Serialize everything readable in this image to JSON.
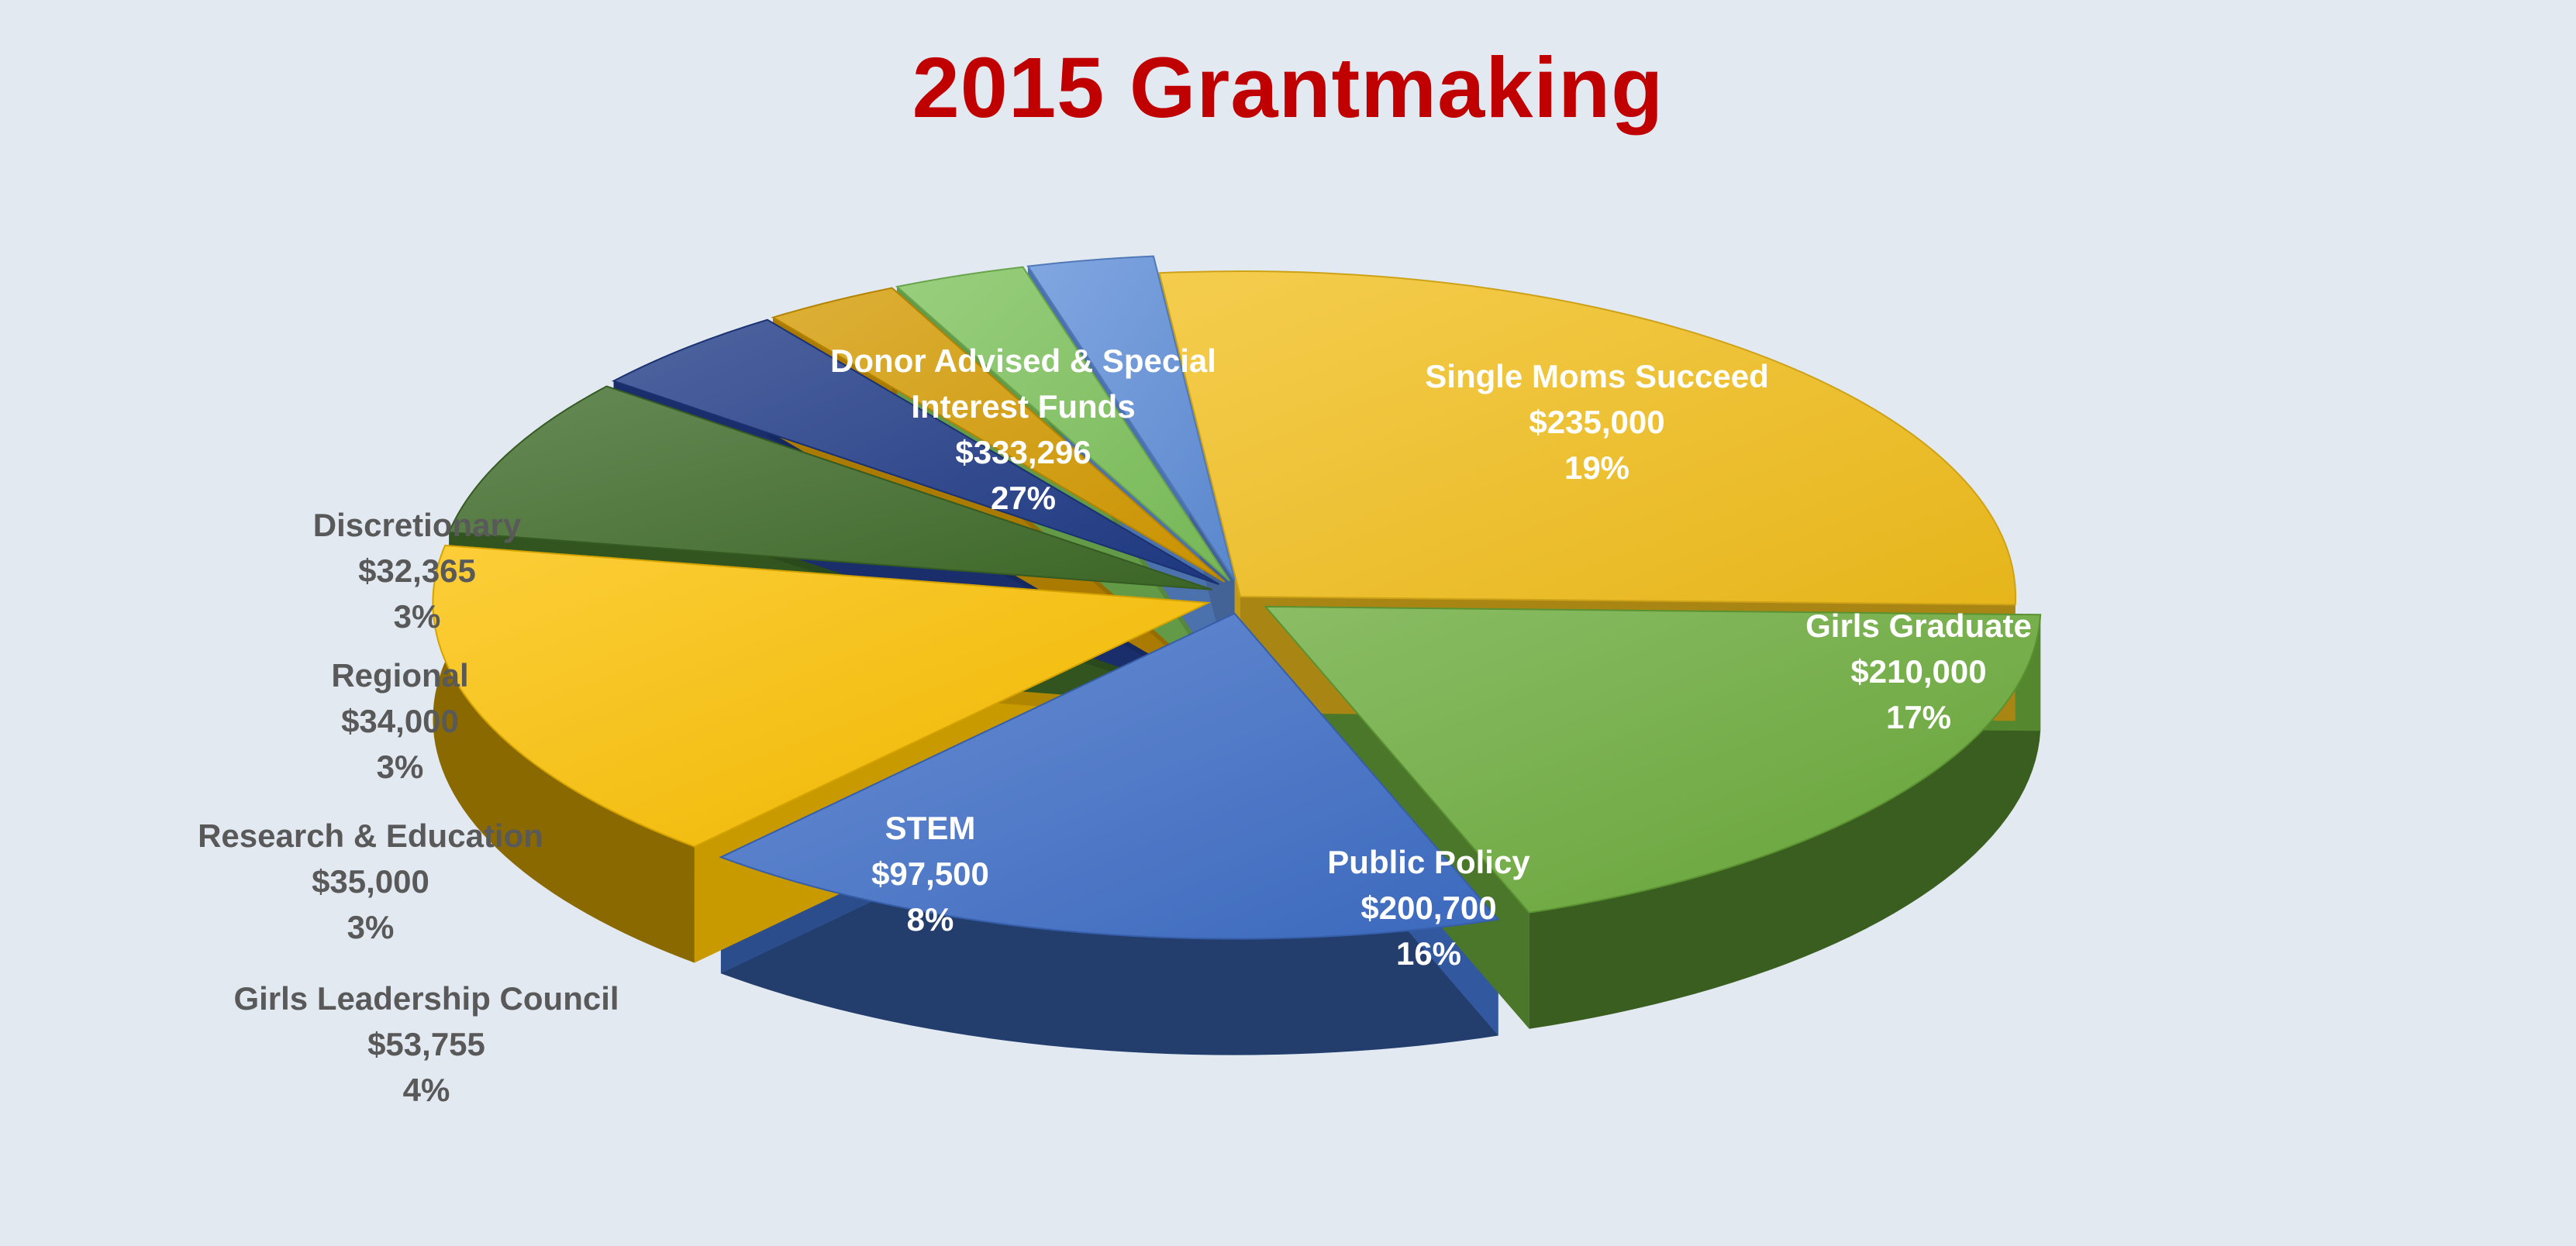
{
  "chart_data": {
    "type": "pie",
    "title": "2015 Grantmaking",
    "slices": [
      {
        "name": "Donor Advised & Special Interest Funds",
        "label_lines": [
          "Donor Advised & Special",
          "Interest Funds"
        ],
        "value": 333296,
        "value_label": "$333,296",
        "percent_label": "27%",
        "color": "#f2bf1c"
      },
      {
        "name": "Single Moms Succeed",
        "label_lines": [
          "Single Moms Succeed"
        ],
        "value": 235000,
        "value_label": "$235,000",
        "percent_label": "19%",
        "color": "#6aaa3a"
      },
      {
        "name": "Girls Graduate",
        "label_lines": [
          "Girls Graduate"
        ],
        "value": 210000,
        "value_label": "$210,000",
        "percent_label": "17%",
        "color": "#3f6ec7"
      },
      {
        "name": "Public Policy",
        "label_lines": [
          "Public Policy"
        ],
        "value": 200700,
        "value_label": "$200,700",
        "percent_label": "16%",
        "color": "#fbc000"
      },
      {
        "name": "STEM",
        "label_lines": [
          "STEM"
        ],
        "value": 97500,
        "value_label": "$97,500",
        "percent_label": "8%",
        "color": "#3e6a28"
      },
      {
        "name": "Girls Leadership Council",
        "label_lines": [
          "Girls Leadership Council"
        ],
        "value": 53755,
        "value_label": "$53,755",
        "percent_label": "4%",
        "color": "#1f3a86"
      },
      {
        "name": "Research & Education",
        "label_lines": [
          "Research & Education"
        ],
        "value": 35000,
        "value_label": "$35,000",
        "percent_label": "3%",
        "color": "#d49a00"
      },
      {
        "name": "Regional",
        "label_lines": [
          "Regional"
        ],
        "value": 34000,
        "value_label": "$34,000",
        "percent_label": "3%",
        "color": "#7cc15a"
      },
      {
        "name": "Discretionary",
        "label_lines": [
          "Discretionary"
        ],
        "value": 32365,
        "value_label": "$32,365",
        "percent_label": "3%",
        "color": "#5f8ed8"
      }
    ],
    "label_placement": "inside for large slices, outside-left for small slices",
    "legend": "none",
    "style": "3d exploded pie"
  }
}
